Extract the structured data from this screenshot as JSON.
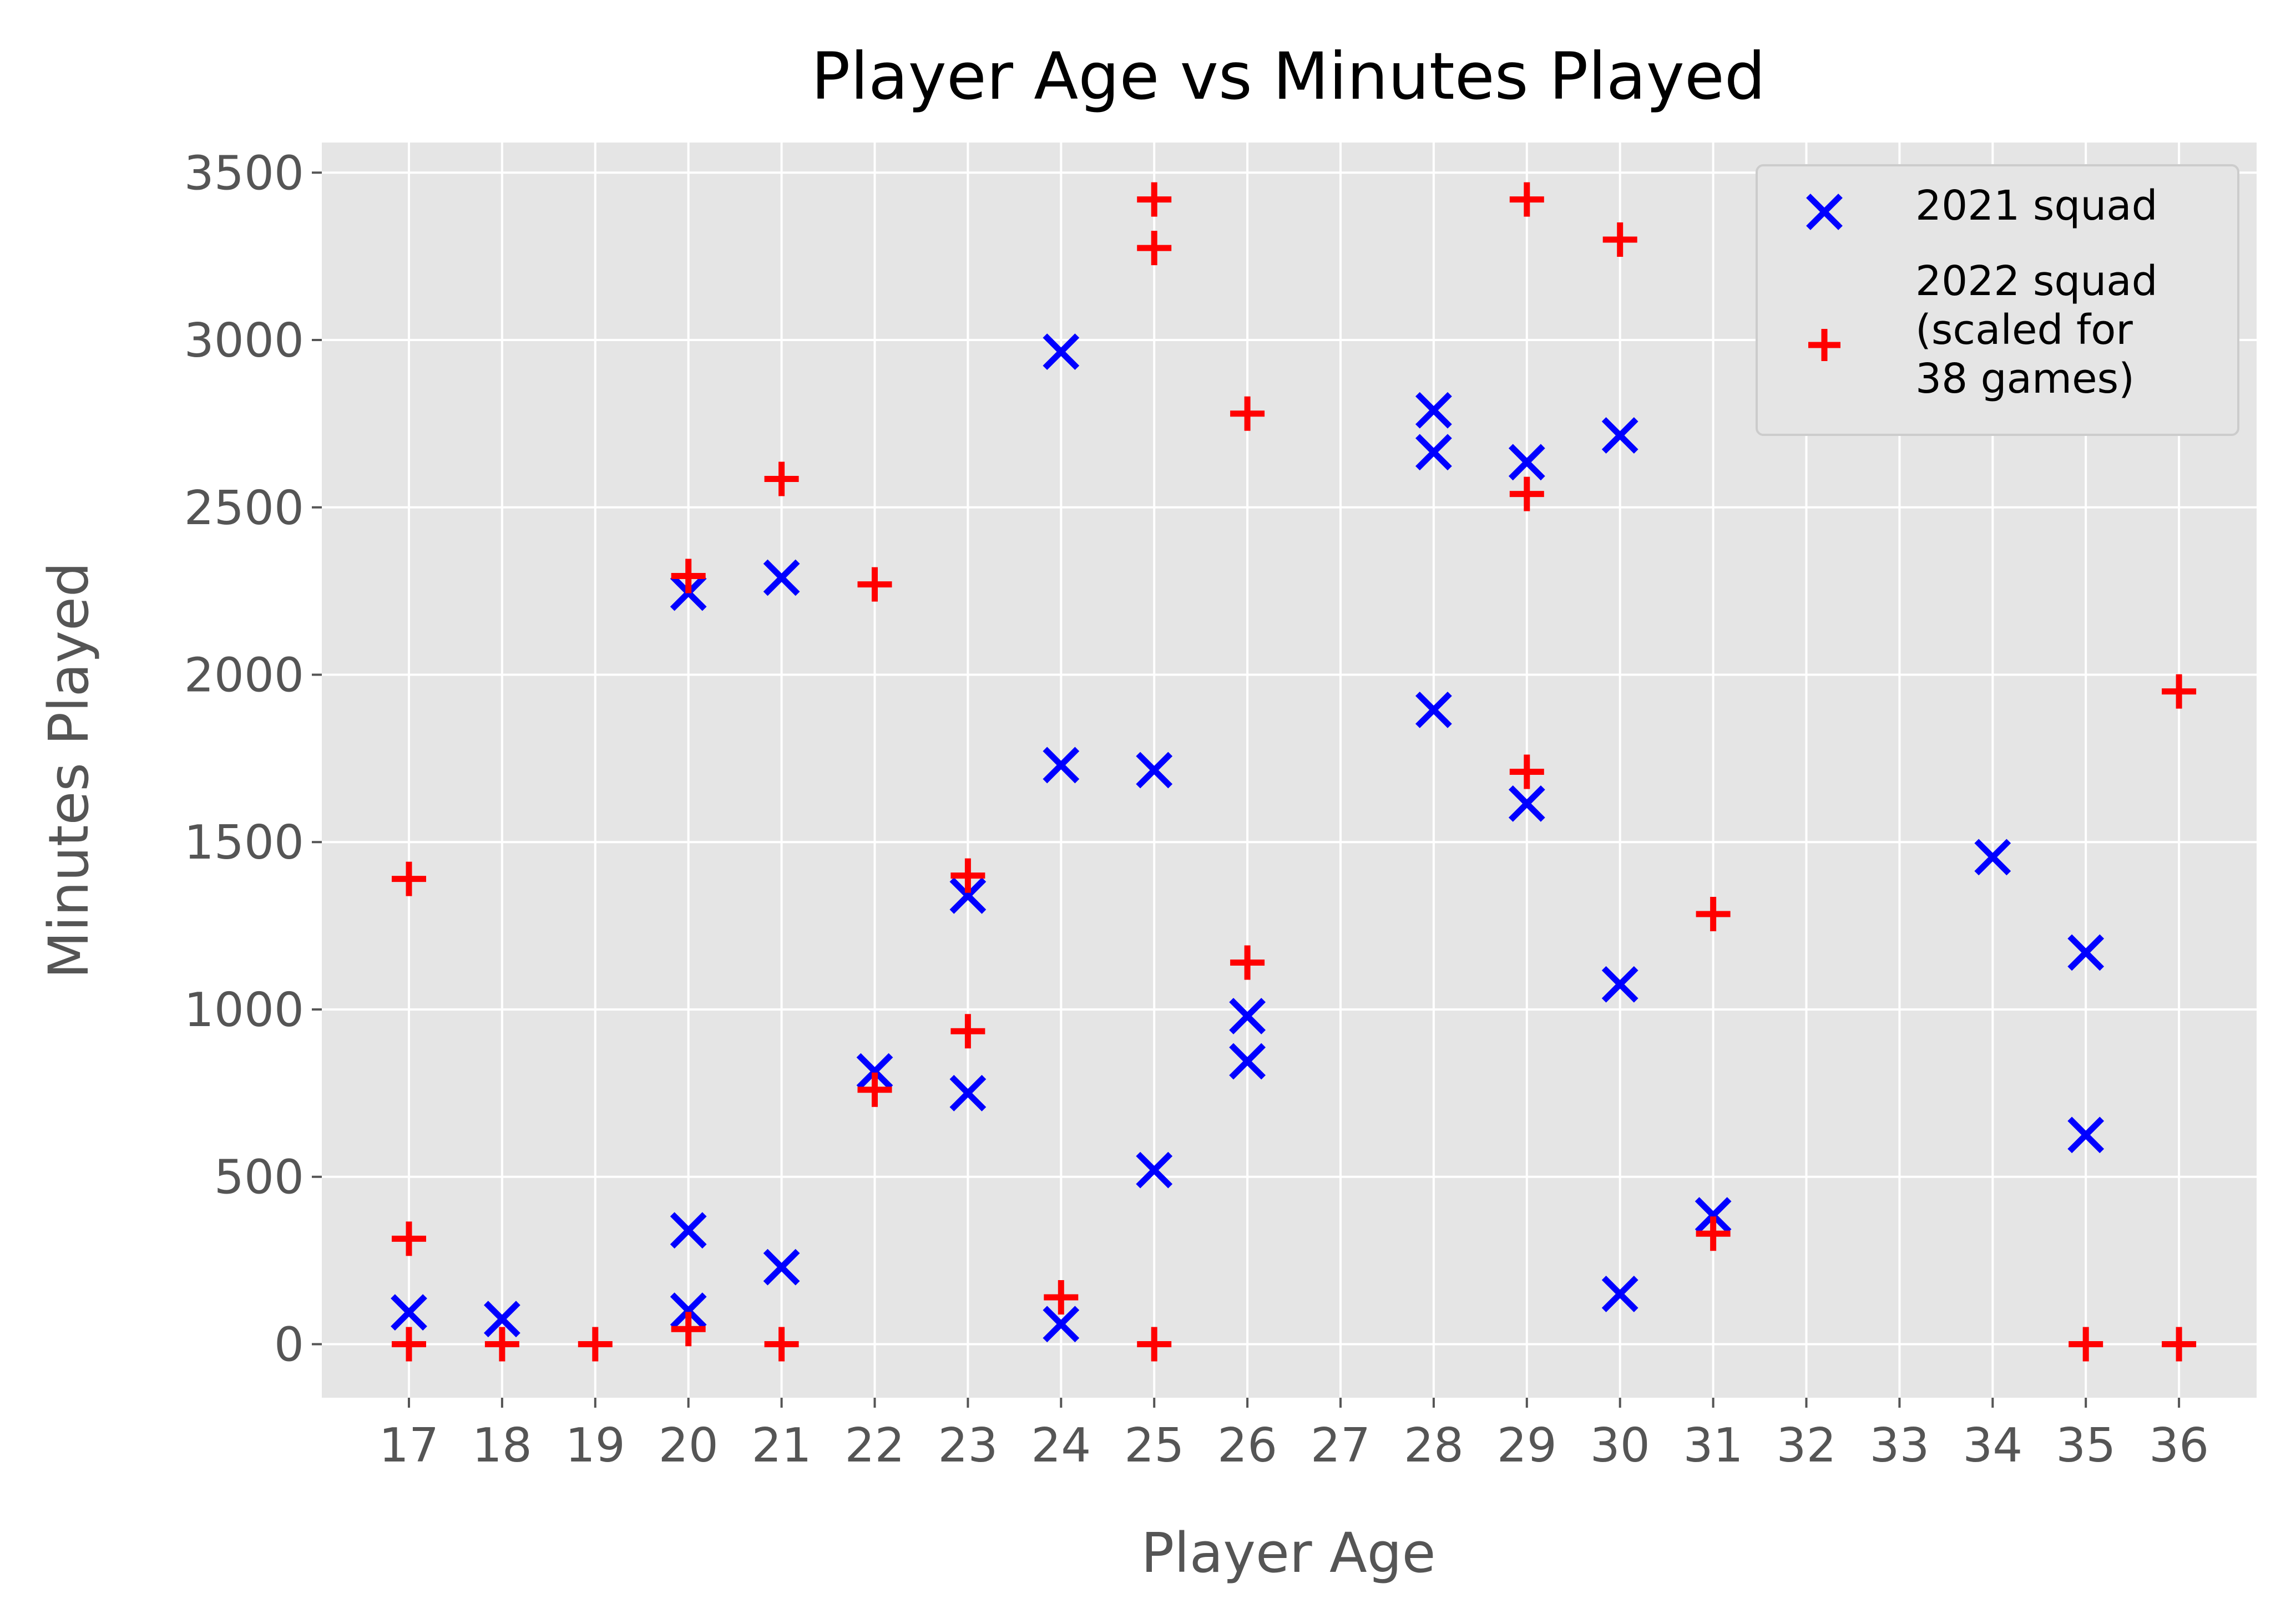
{
  "chart_data": {
    "type": "scatter",
    "title": "Player Age vs Minutes Played",
    "xlabel": "Player Age",
    "ylabel": "Minutes Played",
    "x_ticks": [
      "17",
      "18",
      "19",
      "20",
      "21",
      "22",
      "23",
      "24",
      "25",
      "26",
      "27",
      "28",
      "29",
      "30",
      "31",
      "32",
      "33",
      "34",
      "35",
      "36"
    ],
    "y_ticks": [
      0,
      500,
      1000,
      1500,
      2000,
      2500,
      3000,
      3500
    ],
    "ylim": [
      -160,
      3590
    ],
    "x_axis_note": "categorical axis; each printed age is one evenly spaced slot",
    "grid": true,
    "legend_position": "top-right",
    "legend": [
      {
        "label_lines": [
          "2021 squad"
        ],
        "marker": "x",
        "color": "#0000ff"
      },
      {
        "label_lines": [
          "2022 squad",
          "(scaled for",
          "38 games)"
        ],
        "marker": "+",
        "color": "#ff0000"
      }
    ],
    "series": [
      {
        "name": "2021 squad",
        "marker": "x",
        "color": "#0000ff",
        "points": [
          {
            "x": "17",
            "y": 95
          },
          {
            "x": "18",
            "y": 75
          },
          {
            "x": "20",
            "y": 2245
          },
          {
            "x": "20",
            "y": 340
          },
          {
            "x": "20",
            "y": 100
          },
          {
            "x": "21",
            "y": 2290
          },
          {
            "x": "21",
            "y": 230
          },
          {
            "x": "22",
            "y": 815
          },
          {
            "x": "23",
            "y": 1340
          },
          {
            "x": "23",
            "y": 750
          },
          {
            "x": "24",
            "y": 2965
          },
          {
            "x": "24",
            "y": 1730
          },
          {
            "x": "24",
            "y": 60
          },
          {
            "x": "25",
            "y": 1715
          },
          {
            "x": "25",
            "y": 520
          },
          {
            "x": "26",
            "y": 980
          },
          {
            "x": "26",
            "y": 845
          },
          {
            "x": "28",
            "y": 2790
          },
          {
            "x": "28",
            "y": 2665
          },
          {
            "x": "28",
            "y": 1895
          },
          {
            "x": "29",
            "y": 2635
          },
          {
            "x": "29",
            "y": 1615
          },
          {
            "x": "30",
            "y": 2715
          },
          {
            "x": "30",
            "y": 1075
          },
          {
            "x": "30",
            "y": 150
          },
          {
            "x": "31",
            "y": 385
          },
          {
            "x": "34",
            "y": 1455
          },
          {
            "x": "35",
            "y": 1170
          },
          {
            "x": "35",
            "y": 625
          }
        ]
      },
      {
        "name": "2022 squad (scaled for 38 games)",
        "marker": "+",
        "color": "#ff0000",
        "points": [
          {
            "x": "17",
            "y": 1390
          },
          {
            "x": "17",
            "y": 315
          },
          {
            "x": "17",
            "y": 0
          },
          {
            "x": "18",
            "y": 0
          },
          {
            "x": "19",
            "y": 0
          },
          {
            "x": "20",
            "y": 2295
          },
          {
            "x": "20",
            "y": 45
          },
          {
            "x": "21",
            "y": 2585
          },
          {
            "x": "21",
            "y": 0
          },
          {
            "x": "22",
            "y": 2270
          },
          {
            "x": "22",
            "y": 760
          },
          {
            "x": "23",
            "y": 1400
          },
          {
            "x": "23",
            "y": 935
          },
          {
            "x": "24",
            "y": 140
          },
          {
            "x": "25",
            "y": 3420
          },
          {
            "x": "25",
            "y": 3275
          },
          {
            "x": "25",
            "y": 0
          },
          {
            "x": "26",
            "y": 2780
          },
          {
            "x": "26",
            "y": 1140
          },
          {
            "x": "29",
            "y": 3420
          },
          {
            "x": "29",
            "y": 2540
          },
          {
            "x": "29",
            "y": 1710
          },
          {
            "x": "30",
            "y": 3300
          },
          {
            "x": "31",
            "y": 1285
          },
          {
            "x": "31",
            "y": 330
          },
          {
            "x": "35",
            "y": 0
          },
          {
            "x": "36",
            "y": 1950
          },
          {
            "x": "36",
            "y": 0
          }
        ]
      }
    ]
  }
}
